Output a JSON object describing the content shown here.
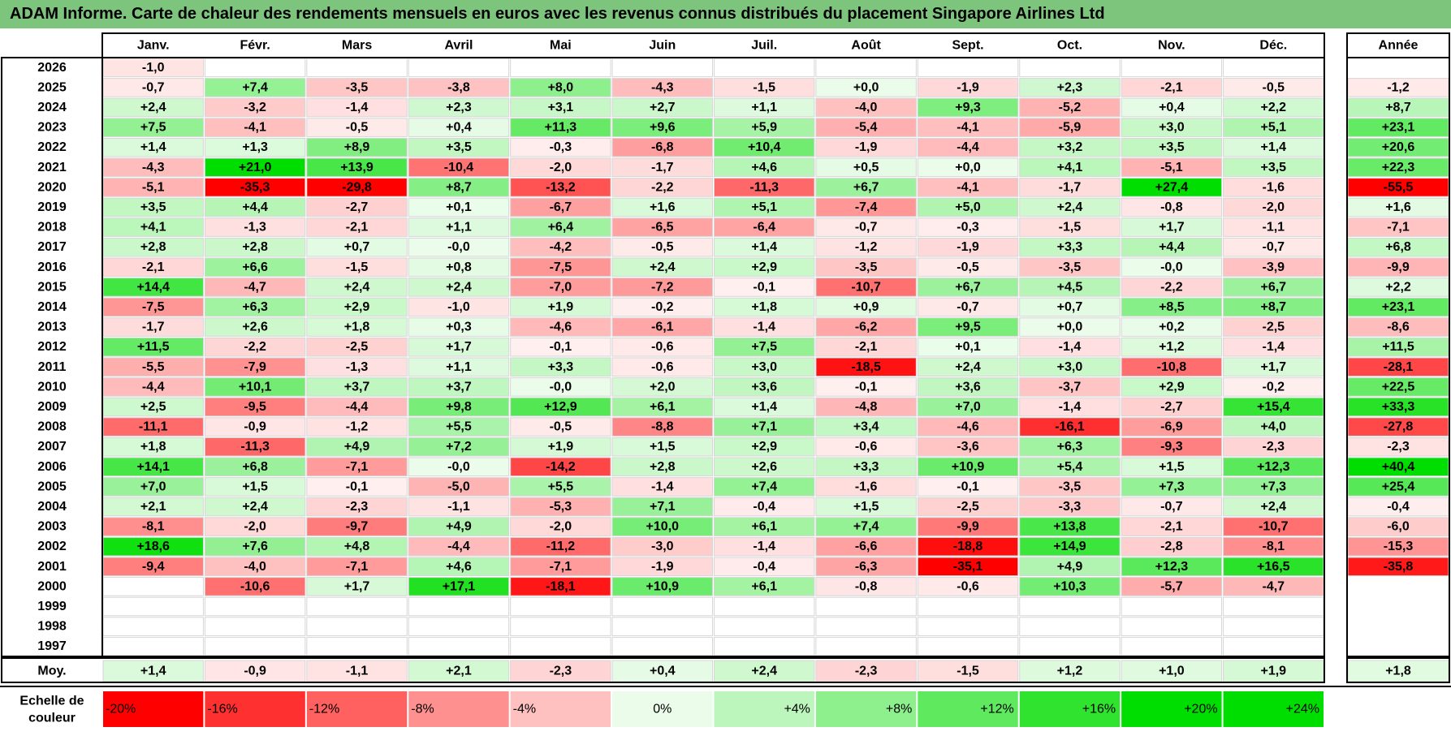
{
  "title": "ADAM Informe. Carte de chaleur des rendements mensuels en euros avec les revenus connus distribués du placement Singapore Airlines Ltd",
  "chart_data": {
    "type": "heatmap",
    "months": [
      "Janv.",
      "Févr.",
      "Mars",
      "Avril",
      "Mai",
      "Juin",
      "Juil.",
      "Août",
      "Sept.",
      "Oct.",
      "Nov.",
      "Déc."
    ],
    "year_header": "Année",
    "rows": [
      {
        "year": "2026",
        "values": [
          "-1,0",
          "",
          "",
          "",
          "",
          "",
          "",
          "",
          "",
          "",
          "",
          ""
        ],
        "annual": ""
      },
      {
        "year": "2025",
        "values": [
          "-0,7",
          "+7,4",
          "-3,5",
          "-3,8",
          "+8,0",
          "-4,3",
          "-1,5",
          "+0,0",
          "-1,9",
          "+2,3",
          "-2,1",
          "-0,5"
        ],
        "annual": "-1,2"
      },
      {
        "year": "2024",
        "values": [
          "+2,4",
          "-3,2",
          "-1,4",
          "+2,3",
          "+3,1",
          "+2,7",
          "+1,1",
          "-4,0",
          "+9,3",
          "-5,2",
          "+0,4",
          "+2,2"
        ],
        "annual": "+8,7"
      },
      {
        "year": "2023",
        "values": [
          "+7,5",
          "-4,1",
          "-0,5",
          "+0,4",
          "+11,3",
          "+9,6",
          "+5,9",
          "-5,4",
          "-4,1",
          "-5,9",
          "+3,0",
          "+5,1"
        ],
        "annual": "+23,1"
      },
      {
        "year": "2022",
        "values": [
          "+1,4",
          "+1,3",
          "+8,9",
          "+3,5",
          "-0,3",
          "-6,8",
          "+10,4",
          "-1,9",
          "-4,4",
          "+3,2",
          "+3,5",
          "+1,4"
        ],
        "annual": "+20,6"
      },
      {
        "year": "2021",
        "values": [
          "-4,3",
          "+21,0",
          "+13,9",
          "-10,4",
          "-2,0",
          "-1,7",
          "+4,6",
          "+0,5",
          "+0,0",
          "+4,1",
          "-5,1",
          "+3,5"
        ],
        "annual": "+22,3"
      },
      {
        "year": "2020",
        "values": [
          "-5,1",
          "-35,3",
          "-29,8",
          "+8,7",
          "-13,2",
          "-2,2",
          "-11,3",
          "+6,7",
          "-4,1",
          "-1,7",
          "+27,4",
          "-1,6"
        ],
        "annual": "-55,5"
      },
      {
        "year": "2019",
        "values": [
          "+3,5",
          "+4,4",
          "-2,7",
          "+0,1",
          "-6,7",
          "+1,6",
          "+5,1",
          "-7,4",
          "+5,0",
          "+2,4",
          "-0,8",
          "-2,0"
        ],
        "annual": "+1,6"
      },
      {
        "year": "2018",
        "values": [
          "+4,1",
          "-1,3",
          "-2,1",
          "+1,1",
          "+6,4",
          "-6,5",
          "-6,4",
          "-0,7",
          "-0,3",
          "-1,5",
          "+1,7",
          "-1,1"
        ],
        "annual": "-7,1"
      },
      {
        "year": "2017",
        "values": [
          "+2,8",
          "+2,8",
          "+0,7",
          "-0,0",
          "-4,2",
          "-0,5",
          "+1,4",
          "-1,2",
          "-1,9",
          "+3,3",
          "+4,4",
          "-0,7"
        ],
        "annual": "+6,8"
      },
      {
        "year": "2016",
        "values": [
          "-2,1",
          "+6,6",
          "-1,5",
          "+0,8",
          "-7,5",
          "+2,4",
          "+2,9",
          "-3,5",
          "-0,5",
          "-3,5",
          "-0,0",
          "-3,9"
        ],
        "annual": "-9,9"
      },
      {
        "year": "2015",
        "values": [
          "+14,4",
          "-4,7",
          "+2,4",
          "+2,4",
          "-7,0",
          "-7,2",
          "-0,1",
          "-10,7",
          "+6,7",
          "+4,5",
          "-2,2",
          "+6,7"
        ],
        "annual": "+2,2"
      },
      {
        "year": "2014",
        "values": [
          "-7,5",
          "+6,3",
          "+2,9",
          "-1,0",
          "+1,9",
          "-0,2",
          "+1,8",
          "+0,9",
          "-0,7",
          "+0,7",
          "+8,5",
          "+8,7"
        ],
        "annual": "+23,1"
      },
      {
        "year": "2013",
        "values": [
          "-1,7",
          "+2,6",
          "+1,8",
          "+0,3",
          "-4,6",
          "-6,1",
          "-1,4",
          "-6,2",
          "+9,5",
          "+0,0",
          "+0,2",
          "-2,5"
        ],
        "annual": "-8,6"
      },
      {
        "year": "2012",
        "values": [
          "+11,5",
          "-2,2",
          "-2,5",
          "+1,7",
          "-0,1",
          "-0,6",
          "+7,5",
          "-2,1",
          "+0,1",
          "-1,4",
          "+1,2",
          "-1,4"
        ],
        "annual": "+11,5"
      },
      {
        "year": "2011",
        "values": [
          "-5,5",
          "-7,9",
          "-1,3",
          "+1,1",
          "+3,3",
          "-0,6",
          "+3,0",
          "-18,5",
          "+2,4",
          "+3,0",
          "-10,8",
          "+1,7"
        ],
        "annual": "-28,1"
      },
      {
        "year": "2010",
        "values": [
          "-4,4",
          "+10,1",
          "+3,7",
          "+3,7",
          "-0,0",
          "+2,0",
          "+3,6",
          "-0,1",
          "+3,6",
          "-3,7",
          "+2,9",
          "-0,2"
        ],
        "annual": "+22,5"
      },
      {
        "year": "2009",
        "values": [
          "+2,5",
          "-9,5",
          "-4,4",
          "+9,8",
          "+12,9",
          "+6,1",
          "+1,4",
          "-4,8",
          "+7,0",
          "-1,4",
          "-2,7",
          "+15,4"
        ],
        "annual": "+33,3"
      },
      {
        "year": "2008",
        "values": [
          "-11,1",
          "-0,9",
          "-1,2",
          "+5,5",
          "-0,5",
          "-8,8",
          "+7,1",
          "+3,4",
          "-4,6",
          "-16,1",
          "-6,9",
          "+4,0"
        ],
        "annual": "-27,8"
      },
      {
        "year": "2007",
        "values": [
          "+1,8",
          "-11,3",
          "+4,9",
          "+7,2",
          "+1,9",
          "+1,5",
          "+2,9",
          "-0,6",
          "-3,6",
          "+6,3",
          "-9,3",
          "-2,3"
        ],
        "annual": "-2,3"
      },
      {
        "year": "2006",
        "values": [
          "+14,1",
          "+6,8",
          "-7,1",
          "-0,0",
          "-14,2",
          "+2,8",
          "+2,6",
          "+3,3",
          "+10,9",
          "+5,4",
          "+1,5",
          "+12,3"
        ],
        "annual": "+40,4"
      },
      {
        "year": "2005",
        "values": [
          "+7,0",
          "+1,5",
          "-0,1",
          "-5,0",
          "+5,5",
          "-1,4",
          "+7,4",
          "-1,6",
          "-0,1",
          "-3,5",
          "+7,3",
          "+7,3"
        ],
        "annual": "+25,4"
      },
      {
        "year": "2004",
        "values": [
          "+2,1",
          "+2,4",
          "-2,3",
          "-1,1",
          "-5,3",
          "+7,1",
          "-0,4",
          "+1,5",
          "-2,5",
          "-3,3",
          "-0,7",
          "+2,4"
        ],
        "annual": "-0,4"
      },
      {
        "year": "2003",
        "values": [
          "-8,1",
          "-2,0",
          "-9,7",
          "+4,9",
          "-2,0",
          "+10,0",
          "+6,1",
          "+7,4",
          "-9,9",
          "+13,8",
          "-2,1",
          "-10,7"
        ],
        "annual": "-6,0"
      },
      {
        "year": "2002",
        "values": [
          "+18,6",
          "+7,6",
          "+4,8",
          "-4,4",
          "-11,2",
          "-3,0",
          "-1,4",
          "-6,6",
          "-18,8",
          "+14,9",
          "-2,8",
          "-8,1"
        ],
        "annual": "-15,3"
      },
      {
        "year": "2001",
        "values": [
          "-9,4",
          "-4,0",
          "-7,1",
          "+4,6",
          "-7,1",
          "-1,9",
          "-0,4",
          "-6,3",
          "-35,1",
          "+4,9",
          "+12,3",
          "+16,5"
        ],
        "annual": "-35,8"
      },
      {
        "year": "2000",
        "values": [
          "",
          "-10,6",
          "+1,7",
          "+17,1",
          "-18,1",
          "+10,9",
          "+6,1",
          "-0,8",
          "-0,6",
          "+10,3",
          "-5,7",
          "-4,7"
        ],
        "annual": ""
      },
      {
        "year": "1999",
        "values": [
          "",
          "",
          "",
          "",
          "",
          "",
          "",
          "",
          "",
          "",
          "",
          ""
        ],
        "annual": ""
      },
      {
        "year": "1998",
        "values": [
          "",
          "",
          "",
          "",
          "",
          "",
          "",
          "",
          "",
          "",
          "",
          ""
        ],
        "annual": ""
      },
      {
        "year": "1997",
        "values": [
          "",
          "",
          "",
          "",
          "",
          "",
          "",
          "",
          "",
          "",
          "",
          ""
        ],
        "annual": ""
      }
    ],
    "average": {
      "label": "Moy.",
      "values": [
        "+1,4",
        "-0,9",
        "-1,1",
        "+2,1",
        "-2,3",
        "+0,4",
        "+2,4",
        "-2,3",
        "-1,5",
        "+1,2",
        "+1,0",
        "+1,9"
      ],
      "annual": "+1,8"
    },
    "scale": {
      "label_line1": "Echelle de",
      "label_line2": "couleur",
      "steps": [
        "-20%",
        "-16%",
        "-12%",
        "-8%",
        "-4%",
        "0%",
        "+4%",
        "+8%",
        "+12%",
        "+16%",
        "+20%",
        "+24%"
      ],
      "step_values": [
        -20,
        -16,
        -12,
        -8,
        -4,
        0,
        4,
        8,
        12,
        16,
        20,
        24
      ]
    },
    "colors": {
      "title_bg": "#7dc47d",
      "negative_max": "#ff0000",
      "positive_max": "#00dd00",
      "neutral": "#ffffff",
      "grid": "#d0d0d0"
    }
  }
}
